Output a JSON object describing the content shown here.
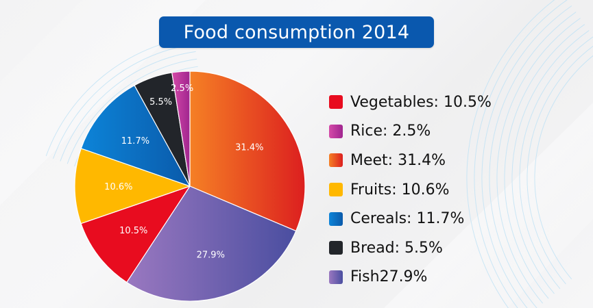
{
  "title": "Food consumption 2014",
  "chart_data": {
    "type": "pie",
    "title": "Food consumption 2014",
    "start": "12 o'clock, clockwise",
    "slices": [
      {
        "name": "Meet",
        "value": 31.4,
        "label": "31.4%",
        "color": "#dc1f1f",
        "gradient": [
          "#f58025",
          "#dc1f1f"
        ]
      },
      {
        "name": "Fish",
        "value": 27.9,
        "label": "27.9%",
        "color": "#4a4ea0",
        "gradient": [
          "#9a78c0",
          "#4a4ea0"
        ]
      },
      {
        "name": "Vegetables",
        "value": 10.5,
        "label": "10.5%",
        "color": "#e80c1f",
        "gradient": [
          "#e80c1f",
          "#e80c1f"
        ]
      },
      {
        "name": "Fruits",
        "value": 10.6,
        "label": "10.6%",
        "color": "#ffb800",
        "gradient": [
          "#ffb800",
          "#ffb800"
        ]
      },
      {
        "name": "Cereals",
        "value": 11.7,
        "label": "11.7%",
        "color": "#0a5aaa",
        "gradient": [
          "#0d84d8",
          "#0a5aaa"
        ]
      },
      {
        "name": "Bread",
        "value": 5.5,
        "label": "5.5%",
        "color": "#22252a",
        "gradient": [
          "#22252a",
          "#22252a"
        ]
      },
      {
        "name": "Rice",
        "value": 2.5,
        "label": "2.5%",
        "color": "#a0258f",
        "gradient": [
          "#d44aa8",
          "#a0258f"
        ]
      }
    ],
    "legend_position": "right"
  },
  "legend": [
    {
      "text": "Vegetables: 10.5%",
      "slice": "Vegetables"
    },
    {
      "text": "Rice: 2.5%",
      "slice": "Rice"
    },
    {
      "text": "Meet: 31.4%",
      "slice": "Meet"
    },
    {
      "text": "Fruits: 10.6%",
      "slice": "Fruits"
    },
    {
      "text": "Cereals: 11.7%",
      "slice": "Cereals"
    },
    {
      "text": "Bread: 5.5%",
      "slice": "Bread"
    },
    {
      "text": "Fish27.9%",
      "slice": "Fish"
    }
  ]
}
